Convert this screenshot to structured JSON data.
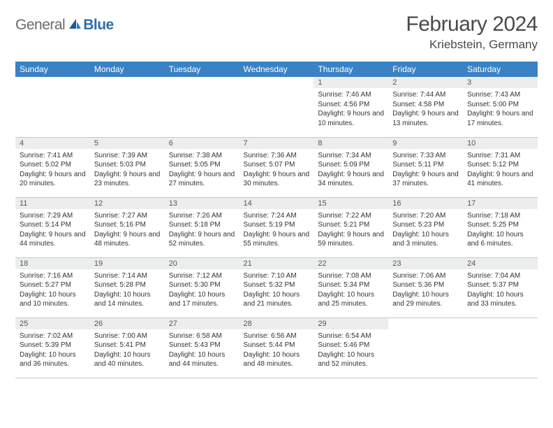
{
  "brand": {
    "part1": "General",
    "part2": "Blue"
  },
  "title": "February 2024",
  "location": "Kriebstein, Germany",
  "colors": {
    "header_bg": "#3b82c4",
    "header_fg": "#ffffff",
    "date_bar_bg": "#eceeee",
    "text": "#333333",
    "rule": "#c8c8c8",
    "logo_gray": "#6b6b6b",
    "logo_blue": "#2e6ea8"
  },
  "day_names": [
    "Sunday",
    "Monday",
    "Tuesday",
    "Wednesday",
    "Thursday",
    "Friday",
    "Saturday"
  ],
  "weeks": [
    [
      null,
      null,
      null,
      null,
      {
        "d": "1",
        "sr": "Sunrise: 7:46 AM",
        "ss": "Sunset: 4:56 PM",
        "dl": "Daylight: 9 hours and 10 minutes."
      },
      {
        "d": "2",
        "sr": "Sunrise: 7:44 AM",
        "ss": "Sunset: 4:58 PM",
        "dl": "Daylight: 9 hours and 13 minutes."
      },
      {
        "d": "3",
        "sr": "Sunrise: 7:43 AM",
        "ss": "Sunset: 5:00 PM",
        "dl": "Daylight: 9 hours and 17 minutes."
      }
    ],
    [
      {
        "d": "4",
        "sr": "Sunrise: 7:41 AM",
        "ss": "Sunset: 5:02 PM",
        "dl": "Daylight: 9 hours and 20 minutes."
      },
      {
        "d": "5",
        "sr": "Sunrise: 7:39 AM",
        "ss": "Sunset: 5:03 PM",
        "dl": "Daylight: 9 hours and 23 minutes."
      },
      {
        "d": "6",
        "sr": "Sunrise: 7:38 AM",
        "ss": "Sunset: 5:05 PM",
        "dl": "Daylight: 9 hours and 27 minutes."
      },
      {
        "d": "7",
        "sr": "Sunrise: 7:36 AM",
        "ss": "Sunset: 5:07 PM",
        "dl": "Daylight: 9 hours and 30 minutes."
      },
      {
        "d": "8",
        "sr": "Sunrise: 7:34 AM",
        "ss": "Sunset: 5:09 PM",
        "dl": "Daylight: 9 hours and 34 minutes."
      },
      {
        "d": "9",
        "sr": "Sunrise: 7:33 AM",
        "ss": "Sunset: 5:11 PM",
        "dl": "Daylight: 9 hours and 37 minutes."
      },
      {
        "d": "10",
        "sr": "Sunrise: 7:31 AM",
        "ss": "Sunset: 5:12 PM",
        "dl": "Daylight: 9 hours and 41 minutes."
      }
    ],
    [
      {
        "d": "11",
        "sr": "Sunrise: 7:29 AM",
        "ss": "Sunset: 5:14 PM",
        "dl": "Daylight: 9 hours and 44 minutes."
      },
      {
        "d": "12",
        "sr": "Sunrise: 7:27 AM",
        "ss": "Sunset: 5:16 PM",
        "dl": "Daylight: 9 hours and 48 minutes."
      },
      {
        "d": "13",
        "sr": "Sunrise: 7:26 AM",
        "ss": "Sunset: 5:18 PM",
        "dl": "Daylight: 9 hours and 52 minutes."
      },
      {
        "d": "14",
        "sr": "Sunrise: 7:24 AM",
        "ss": "Sunset: 5:19 PM",
        "dl": "Daylight: 9 hours and 55 minutes."
      },
      {
        "d": "15",
        "sr": "Sunrise: 7:22 AM",
        "ss": "Sunset: 5:21 PM",
        "dl": "Daylight: 9 hours and 59 minutes."
      },
      {
        "d": "16",
        "sr": "Sunrise: 7:20 AM",
        "ss": "Sunset: 5:23 PM",
        "dl": "Daylight: 10 hours and 3 minutes."
      },
      {
        "d": "17",
        "sr": "Sunrise: 7:18 AM",
        "ss": "Sunset: 5:25 PM",
        "dl": "Daylight: 10 hours and 6 minutes."
      }
    ],
    [
      {
        "d": "18",
        "sr": "Sunrise: 7:16 AM",
        "ss": "Sunset: 5:27 PM",
        "dl": "Daylight: 10 hours and 10 minutes."
      },
      {
        "d": "19",
        "sr": "Sunrise: 7:14 AM",
        "ss": "Sunset: 5:28 PM",
        "dl": "Daylight: 10 hours and 14 minutes."
      },
      {
        "d": "20",
        "sr": "Sunrise: 7:12 AM",
        "ss": "Sunset: 5:30 PM",
        "dl": "Daylight: 10 hours and 17 minutes."
      },
      {
        "d": "21",
        "sr": "Sunrise: 7:10 AM",
        "ss": "Sunset: 5:32 PM",
        "dl": "Daylight: 10 hours and 21 minutes."
      },
      {
        "d": "22",
        "sr": "Sunrise: 7:08 AM",
        "ss": "Sunset: 5:34 PM",
        "dl": "Daylight: 10 hours and 25 minutes."
      },
      {
        "d": "23",
        "sr": "Sunrise: 7:06 AM",
        "ss": "Sunset: 5:36 PM",
        "dl": "Daylight: 10 hours and 29 minutes."
      },
      {
        "d": "24",
        "sr": "Sunrise: 7:04 AM",
        "ss": "Sunset: 5:37 PM",
        "dl": "Daylight: 10 hours and 33 minutes."
      }
    ],
    [
      {
        "d": "25",
        "sr": "Sunrise: 7:02 AM",
        "ss": "Sunset: 5:39 PM",
        "dl": "Daylight: 10 hours and 36 minutes."
      },
      {
        "d": "26",
        "sr": "Sunrise: 7:00 AM",
        "ss": "Sunset: 5:41 PM",
        "dl": "Daylight: 10 hours and 40 minutes."
      },
      {
        "d": "27",
        "sr": "Sunrise: 6:58 AM",
        "ss": "Sunset: 5:43 PM",
        "dl": "Daylight: 10 hours and 44 minutes."
      },
      {
        "d": "28",
        "sr": "Sunrise: 6:56 AM",
        "ss": "Sunset: 5:44 PM",
        "dl": "Daylight: 10 hours and 48 minutes."
      },
      {
        "d": "29",
        "sr": "Sunrise: 6:54 AM",
        "ss": "Sunset: 5:46 PM",
        "dl": "Daylight: 10 hours and 52 minutes."
      },
      null,
      null
    ]
  ]
}
